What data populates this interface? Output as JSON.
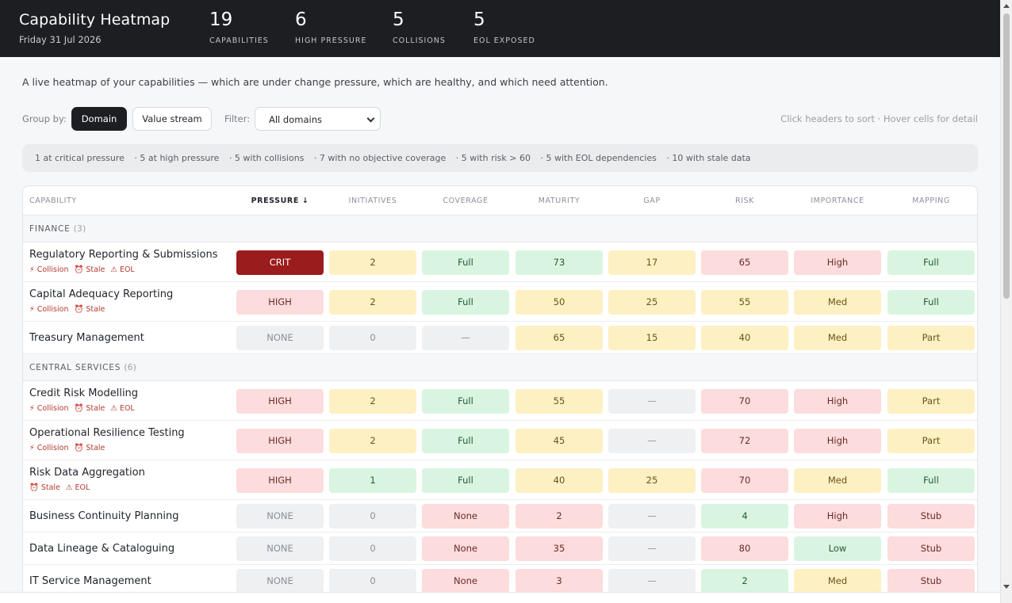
{
  "header": {
    "title": "Capability Heatmap",
    "date": "Friday 31 Jul 2026",
    "stats": [
      {
        "value": "19",
        "label": "CAPABILITIES"
      },
      {
        "value": "6",
        "label": "HIGH PRESSURE"
      },
      {
        "value": "5",
        "label": "COLLISIONS"
      },
      {
        "value": "5",
        "label": "EOL EXPOSED"
      }
    ]
  },
  "description": "A live heatmap of your capabilities — which are under change pressure, which are healthy, and which need attention.",
  "toolbar": {
    "group_label": "Group by:",
    "group_domain": "Domain",
    "group_value_stream": "Value stream",
    "filter_label": "Filter:",
    "filter_value": "All domains",
    "hint": "Click headers to sort · Hover cells for detail"
  },
  "summary": [
    "1 at critical pressure",
    "· 5 at high pressure",
    "· 5 with collisions",
    "· 7 with no objective coverage",
    "· 5 with risk > 60",
    "· 5 with EOL dependencies",
    "· 10 with stale data"
  ],
  "columns": [
    "CAPABILITY",
    "PRESSURE ↓",
    "INITIATIVES",
    "COVERAGE",
    "MATURITY",
    "GAP",
    "RISK",
    "IMPORTANCE",
    "MAPPING"
  ],
  "tag_labels": {
    "collision": "⚡ Collision",
    "stale": "⏰ Stale",
    "eol": "⚠ EOL"
  },
  "colors": {
    "crit": "#9b1c1c",
    "red": "#fcdcdc",
    "amber": "#fdf0c2",
    "green": "#d9f5e1",
    "grey": "#eef0f2"
  },
  "groups": [
    {
      "name": "FINANCE",
      "count": "(3)",
      "rows": [
        {
          "name": "Regulatory Reporting & Submissions",
          "tags": [
            "collision",
            "stale",
            "eol"
          ],
          "cells": [
            [
              "CRIT",
              "crit"
            ],
            [
              "2",
              "amber"
            ],
            [
              "Full",
              "green"
            ],
            [
              "73",
              "green"
            ],
            [
              "17",
              "amber"
            ],
            [
              "65",
              "red"
            ],
            [
              "High",
              "red"
            ],
            [
              "Full",
              "green"
            ]
          ]
        },
        {
          "name": "Capital Adequacy Reporting",
          "tags": [
            "collision",
            "stale"
          ],
          "cells": [
            [
              "HIGH",
              "red"
            ],
            [
              "2",
              "amber"
            ],
            [
              "Full",
              "green"
            ],
            [
              "50",
              "amber"
            ],
            [
              "25",
              "amber"
            ],
            [
              "55",
              "amber"
            ],
            [
              "Med",
              "amber"
            ],
            [
              "Full",
              "green"
            ]
          ]
        },
        {
          "name": "Treasury Management",
          "tags": [],
          "cells": [
            [
              "NONE",
              "grey"
            ],
            [
              "0",
              "grey"
            ],
            [
              "—",
              "grey"
            ],
            [
              "65",
              "amber"
            ],
            [
              "15",
              "amber"
            ],
            [
              "40",
              "amber"
            ],
            [
              "Med",
              "amber"
            ],
            [
              "Part",
              "amber"
            ]
          ]
        }
      ]
    },
    {
      "name": "CENTRAL SERVICES",
      "count": "(6)",
      "rows": [
        {
          "name": "Credit Risk Modelling",
          "tags": [
            "collision",
            "stale",
            "eol"
          ],
          "cells": [
            [
              "HIGH",
              "red"
            ],
            [
              "2",
              "amber"
            ],
            [
              "Full",
              "green"
            ],
            [
              "55",
              "amber"
            ],
            [
              "—",
              "grey"
            ],
            [
              "70",
              "red"
            ],
            [
              "High",
              "red"
            ],
            [
              "Part",
              "amber"
            ]
          ]
        },
        {
          "name": "Operational Resilience Testing",
          "tags": [
            "collision",
            "stale"
          ],
          "cells": [
            [
              "HIGH",
              "red"
            ],
            [
              "2",
              "amber"
            ],
            [
              "Full",
              "green"
            ],
            [
              "45",
              "amber"
            ],
            [
              "—",
              "grey"
            ],
            [
              "72",
              "red"
            ],
            [
              "High",
              "red"
            ],
            [
              "Part",
              "amber"
            ]
          ]
        },
        {
          "name": "Risk Data Aggregation",
          "tags": [
            "stale",
            "eol"
          ],
          "cells": [
            [
              "HIGH",
              "red"
            ],
            [
              "1",
              "green"
            ],
            [
              "Full",
              "green"
            ],
            [
              "40",
              "amber"
            ],
            [
              "25",
              "amber"
            ],
            [
              "70",
              "red"
            ],
            [
              "Med",
              "amber"
            ],
            [
              "Full",
              "green"
            ]
          ]
        },
        {
          "name": "Business Continuity Planning",
          "tags": [],
          "cells": [
            [
              "NONE",
              "grey"
            ],
            [
              "0",
              "grey"
            ],
            [
              "None",
              "red"
            ],
            [
              "2",
              "red"
            ],
            [
              "—",
              "grey"
            ],
            [
              "4",
              "green"
            ],
            [
              "High",
              "red"
            ],
            [
              "Stub",
              "red"
            ]
          ]
        },
        {
          "name": "Data Lineage & Cataloguing",
          "tags": [],
          "cells": [
            [
              "NONE",
              "grey"
            ],
            [
              "0",
              "grey"
            ],
            [
              "None",
              "red"
            ],
            [
              "35",
              "red"
            ],
            [
              "—",
              "grey"
            ],
            [
              "80",
              "red"
            ],
            [
              "Low",
              "green"
            ],
            [
              "Stub",
              "red"
            ]
          ]
        },
        {
          "name": "IT Service Management",
          "tags": [],
          "cells": [
            [
              "NONE",
              "grey"
            ],
            [
              "0",
              "grey"
            ],
            [
              "None",
              "red"
            ],
            [
              "3",
              "red"
            ],
            [
              "—",
              "grey"
            ],
            [
              "2",
              "green"
            ],
            [
              "Med",
              "amber"
            ],
            [
              "Stub",
              "red"
            ]
          ]
        }
      ]
    }
  ]
}
